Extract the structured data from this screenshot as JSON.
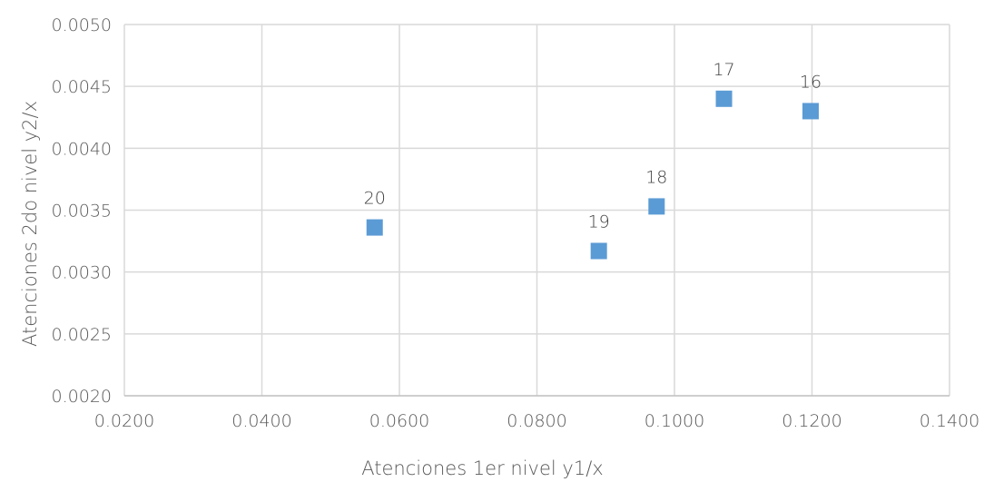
{
  "chart_data": {
    "type": "scatter",
    "title": "",
    "xlabel": "Atenciones 1er nivel y1/x",
    "ylabel": "Atenciones 2do nivel y2/x",
    "xlim": [
      0.02,
      0.14
    ],
    "ylim": [
      0.002,
      0.005
    ],
    "x_ticks": [
      "0.0200",
      "0.0400",
      "0.0600",
      "0.0800",
      "0.1000",
      "0.1200",
      "0.1400"
    ],
    "y_ticks": [
      "0.0020",
      "0.0025",
      "0.0030",
      "0.0035",
      "0.0040",
      "0.0045",
      "0.0050"
    ],
    "grid": true,
    "legend": "none",
    "marker": "square",
    "color": "#5b9bd5",
    "points": [
      {
        "label": "20",
        "x": 0.0564,
        "y": 0.00336
      },
      {
        "label": "19",
        "x": 0.089,
        "y": 0.00317
      },
      {
        "label": "18",
        "x": 0.0974,
        "y": 0.00353
      },
      {
        "label": "17",
        "x": 0.1072,
        "y": 0.0044
      },
      {
        "label": "16",
        "x": 0.1198,
        "y": 0.0043
      }
    ]
  }
}
